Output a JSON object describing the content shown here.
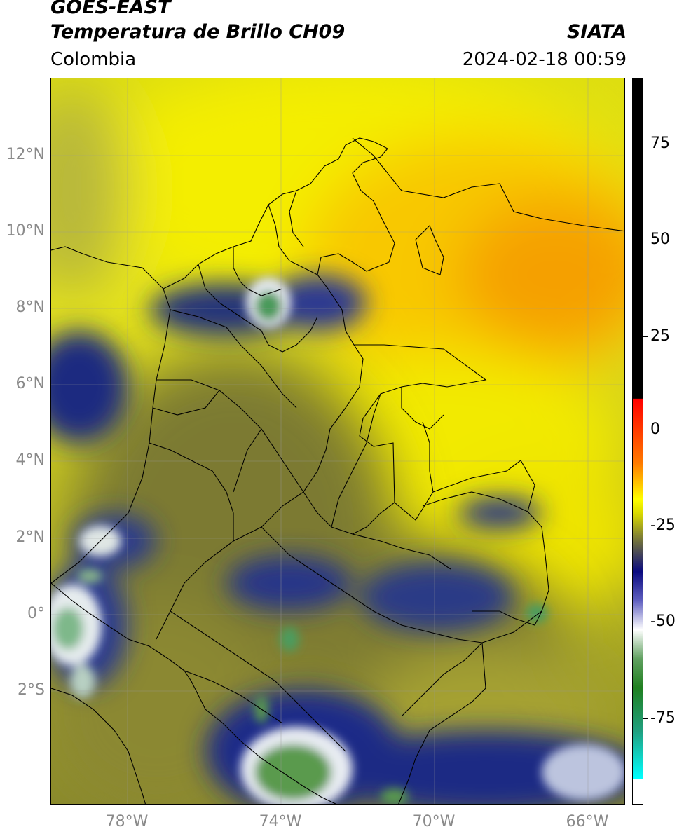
{
  "header": {
    "satellite": "GOES-EAST",
    "product": "Temperatura de Brillo CH09",
    "region": "Colombia",
    "agency": "SIATA",
    "datetime": "2024-02-18 00:59"
  },
  "map": {
    "lon_range": [
      -80,
      -65
    ],
    "lat_range": [
      -5,
      14
    ],
    "lat_ticks": [
      "12°N",
      "10°N",
      "8°N",
      "6°N",
      "4°N",
      "2°N",
      "0°",
      "2°S"
    ],
    "lon_ticks": [
      "78°W",
      "74°W",
      "70°W",
      "66°W"
    ],
    "lat_values": [
      12,
      10,
      8,
      6,
      4,
      2,
      0,
      -2
    ],
    "lon_values": [
      -78,
      -74,
      -70,
      -66
    ],
    "gridlines": true
  },
  "colorbar": {
    "range": [
      -95,
      90
    ],
    "labels": [
      "75",
      "50",
      "25",
      "0",
      "-25",
      "-50",
      "-75"
    ],
    "values": [
      75,
      50,
      25,
      0,
      -25,
      -50,
      -75
    ]
  }
}
